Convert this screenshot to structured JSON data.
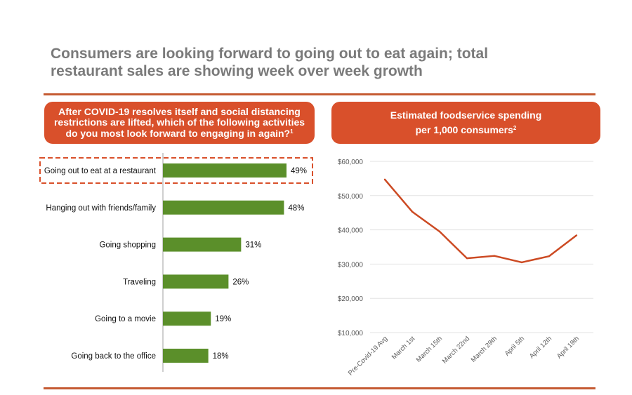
{
  "title": {
    "line1": "Consumers are looking forward to going out to eat again; total",
    "line2": "restaurant sales are showing week over week growth"
  },
  "left_panel": {
    "header_lines": [
      "After COVID-19 resolves itself and social distancing",
      "restrictions are lifted, which of the following activities",
      "do you most look forward to engaging in again?"
    ],
    "header_footnote": "1"
  },
  "right_panel": {
    "header_lines": [
      "Estimated foodservice spending",
      "per 1,000 consumers"
    ],
    "header_footnote": "2"
  },
  "colors": {
    "accent": "#d9502b",
    "rule": "#c55a32",
    "bar": "#5b8f2a",
    "line": "#cc4a23",
    "title": "#7a7a7a",
    "highlight_dash": "#d9502b"
  },
  "chart_data": [
    {
      "type": "bar",
      "orientation": "horizontal",
      "categories": [
        "Going out to eat at a restaurant",
        "Hanging out with friends/family",
        "Going shopping",
        "Traveling",
        "Going to a movie",
        "Going back to the office"
      ],
      "values": [
        49,
        48,
        31,
        26,
        19,
        18
      ],
      "value_labels": [
        "49%",
        "48%",
        "31%",
        "26%",
        "19%",
        "18%"
      ],
      "highlighted_category": "Going out to eat at a restaurant",
      "xlim": [
        0,
        50
      ]
    },
    {
      "type": "line",
      "x": [
        "Pre-Covid-19 Avg",
        "March 1st",
        "March 15th",
        "March 22nd",
        "March 29th",
        "April 5th",
        "April 12th",
        "April 19th"
      ],
      "values": [
        54700,
        45300,
        39500,
        31700,
        32400,
        30500,
        32300,
        38400
      ],
      "ylim": [
        10000,
        60000
      ],
      "yticks": [
        10000,
        20000,
        30000,
        40000,
        50000,
        60000
      ],
      "ytick_labels": [
        "$10,000",
        "$20,000",
        "$30,000",
        "$40,000",
        "$50,000",
        "$60,000"
      ],
      "grid": true
    }
  ]
}
